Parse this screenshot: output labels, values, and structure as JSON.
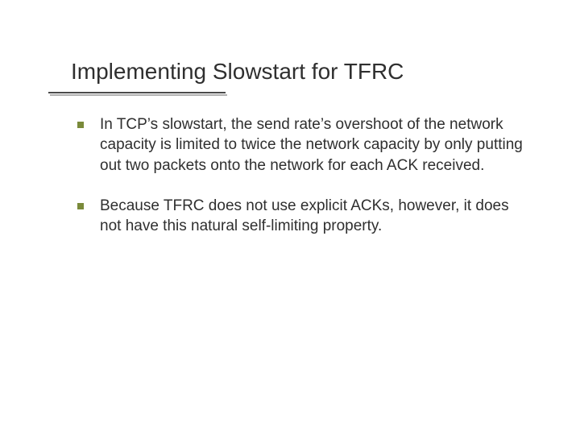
{
  "slide": {
    "title": "Implementing Slowstart for TFRC",
    "title_color": "#2f2f2f",
    "title_fontsize": 28,
    "underline_color": "#4a4a4a",
    "underline_shadow_color": "#b0b0b0",
    "background_color": "#ffffff",
    "bullets": [
      {
        "text": "In TCP’s slowstart, the send rate’s overshoot of the network capacity is limited to twice the network capacity by only putting out two packets onto the network for each ACK received."
      },
      {
        "text": "Because TFRC does not use explicit ACKs, however, it does not have this natural self-limiting property."
      }
    ],
    "bullet_marker_color": "#7a8a3a",
    "bullet_text_color": "#2f2f2f",
    "bullet_fontsize": 19
  }
}
